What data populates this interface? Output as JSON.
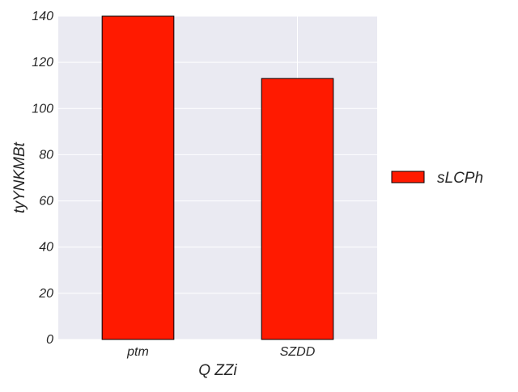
{
  "chart_data": {
    "type": "bar",
    "title": "",
    "xlabel": "Q ZZi",
    "ylabel": "tyYNKMBt",
    "categories": [
      "ptm",
      "SZDD"
    ],
    "series": [
      {
        "name": "sLCPh",
        "values": [
          140,
          113
        ]
      }
    ],
    "ylim": [
      0,
      140
    ],
    "yticks": [
      0,
      20,
      40,
      60,
      80,
      100,
      120,
      140
    ],
    "grid": true,
    "legend_position": "right",
    "colors": {
      "plot_background": "#EAEAF2",
      "grid": "#FFFFFF",
      "bar_fill": "#FF1A00",
      "bar_edge": "#000000",
      "text": "#262626"
    }
  }
}
